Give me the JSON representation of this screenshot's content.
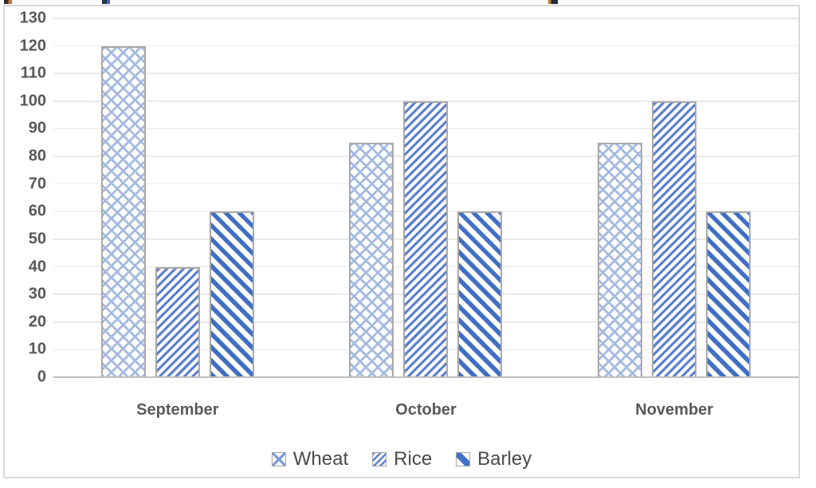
{
  "chart_data": {
    "type": "bar",
    "title": "",
    "categories": [
      "September",
      "October",
      "November"
    ],
    "series": [
      {
        "name": "Wheat",
        "values": [
          120,
          85,
          85
        ],
        "pattern": "diagonal-crosshatch",
        "color": "#A4BAE0"
      },
      {
        "name": "Rice",
        "values": [
          40,
          100,
          100
        ],
        "pattern": "diagonal-stripes-up",
        "color": "#5B80D1"
      },
      {
        "name": "Barley",
        "values": [
          60,
          60,
          60
        ],
        "pattern": "diagonal-stripes-down",
        "color": "#4472C4"
      }
    ],
    "ylim": [
      0,
      130
    ],
    "ytick_step": 10,
    "yticks": [
      0,
      10,
      20,
      30,
      40,
      50,
      60,
      70,
      80,
      90,
      100,
      110,
      120,
      130
    ],
    "grid": "horizontal-gridlines",
    "legend_position": "bottom-center",
    "legend_entries": [
      "Wheat",
      "Rice",
      "Barley"
    ],
    "xlabel": "",
    "ylabel": ""
  },
  "colors": {
    "gridline": "#E9E9E9",
    "axis_line": "#BFBFBF",
    "chart_border": "#D9D9D9",
    "bar_border": "#A9A9A9",
    "axis_text": "#595959",
    "legend_text": "#4A4A4A"
  }
}
